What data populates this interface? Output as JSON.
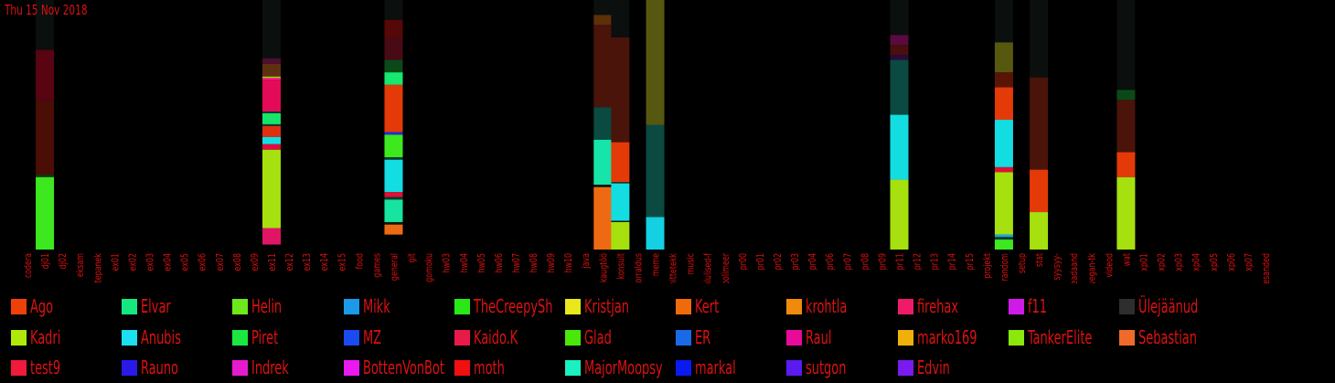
{
  "date_label": "Thu 15 Nov 2018",
  "colors": {
    "label_red": "#dd1111",
    "background": "#000000",
    "unused": "#0b0f0d"
  },
  "chart_data": {
    "type": "bar",
    "stacked": true,
    "ylim": [
      0,
      100
    ],
    "categories": [
      "codera",
      "dj01",
      "dj02",
      "eksam",
      "ettepanek",
      "ex01",
      "ex02",
      "ex03",
      "ex04",
      "ex05",
      "ex06",
      "ex07",
      "ex08",
      "ex09",
      "ex11",
      "ex12",
      "ex13",
      "ex14",
      "ex15",
      "food",
      "games",
      "general",
      "git",
      "gomoku",
      "hw03",
      "hw04",
      "hw05",
      "hw06",
      "hw07",
      "hw08",
      "hw09",
      "hw10",
      "java",
      "kaugtöö",
      "konsult",
      "korraldus",
      "meme",
      "mittetekk",
      "music",
      "olulised-f",
      "polimeer",
      "pr00",
      "pr01",
      "pr02",
      "pr03",
      "pr04",
      "pr06",
      "pr07",
      "pr08",
      "pr09",
      "pr11",
      "pr12",
      "pr13",
      "pr14",
      "pr15",
      "projekt",
      "random",
      "setup",
      "stat",
      "syysyy-",
      "teadaand",
      "vegan-tk",
      "videod",
      "wat",
      "xp01",
      "xp02",
      "xp03",
      "xp04",
      "xp05",
      "xp06",
      "xp07",
      "ülesanded"
    ],
    "bars": {
      "dj01": [
        {
          "color": "#0b0f0d",
          "value": 20
        },
        {
          "color": "#580412",
          "value": 20
        },
        {
          "color": "#4a0e07",
          "value": 30
        },
        {
          "color": "#0d3a10",
          "value": 1
        },
        {
          "color": "#3ee81f",
          "value": 29
        }
      ],
      "ex11": [
        {
          "color": "#0b0f0d",
          "value": 23.4
        },
        {
          "color": "#4e0e30",
          "value": 2.2
        },
        {
          "color": "#5e3010",
          "value": 5.1
        },
        {
          "color": "#a0e020",
          "value": 0.5
        },
        {
          "color": "#ff2a80",
          "value": 0.7
        },
        {
          "color": "#e30b58",
          "value": 12.8
        },
        {
          "color": "#0c3a2c",
          "value": 0.7
        },
        {
          "color": "#17e46a",
          "value": 4.4
        },
        {
          "color": "#0c3a2c",
          "value": 0.7
        },
        {
          "color": "#e03010",
          "value": 4.4
        },
        {
          "color": "#14dde2",
          "value": 2.9
        },
        {
          "color": "#e30b40",
          "value": 2.2
        },
        {
          "color": "#a6e00e",
          "value": 31.4
        },
        {
          "color": "#e01565",
          "value": 6.6
        }
      ],
      "general": [
        {
          "color": "#0b0f0d",
          "value": 8
        },
        {
          "color": "#560808",
          "value": 7
        },
        {
          "color": "#480a14",
          "value": 9
        },
        {
          "color": "#0a4a18",
          "value": 5
        },
        {
          "color": "#16e870",
          "value": 5
        },
        {
          "color": "#e43a08",
          "value": 19
        },
        {
          "color": "#1a2ee0",
          "value": 1
        },
        {
          "color": "#3ee81f",
          "value": 9
        },
        {
          "color": "#0c3a2c",
          "value": 1
        },
        {
          "color": "#14dde2",
          "value": 13
        },
        {
          "color": "#e01035",
          "value": 2
        },
        {
          "color": "#0c3a2c",
          "value": 1
        },
        {
          "color": "#17e4a0",
          "value": 9
        },
        {
          "color": "#0a1a10",
          "value": 1
        },
        {
          "color": "#ee6a12",
          "value": 4
        }
      ],
      "kaugtöö": [
        {
          "color": "#0b0f0d",
          "value": 6
        },
        {
          "color": "#5e3008",
          "value": 4
        },
        {
          "color": "#4a140a",
          "value": 33
        },
        {
          "color": "#0b4a40",
          "value": 13
        },
        {
          "color": "#17e4a8",
          "value": 18
        },
        {
          "color": "#0a1a10",
          "value": 1
        },
        {
          "color": "#ee6a12",
          "value": 25
        }
      ],
      "konsult": [
        {
          "color": "#0b0f0d",
          "value": 15
        },
        {
          "color": "#4a140a",
          "value": 42
        },
        {
          "color": "#e43a08",
          "value": 16
        },
        {
          "color": "#0c3a2c",
          "value": 0.5
        },
        {
          "color": "#14dde2",
          "value": 15
        },
        {
          "color": "#0a1a10",
          "value": 0.5
        },
        {
          "color": "#a6e00e",
          "value": 11
        }
      ],
      "meme": [
        {
          "color": "#565810",
          "value": 50
        },
        {
          "color": "#0b4a40",
          "value": 37
        },
        {
          "color": "#14d0e2",
          "value": 13
        }
      ],
      "pr11": [
        {
          "color": "#0b0f0d",
          "value": 14
        },
        {
          "color": "#5a0a40",
          "value": 4
        },
        {
          "color": "#4a0e0e",
          "value": 4
        },
        {
          "color": "#2a0a3a",
          "value": 2
        },
        {
          "color": "#0b4a40",
          "value": 22
        },
        {
          "color": "#14dde2",
          "value": 26
        },
        {
          "color": "#a6e00e",
          "value": 28
        }
      ],
      "random": [
        {
          "color": "#0b0f0d",
          "value": 17
        },
        {
          "color": "#565810",
          "value": 12
        },
        {
          "color": "#5a1405",
          "value": 6
        },
        {
          "color": "#e43a08",
          "value": 13
        },
        {
          "color": "#14dde2",
          "value": 19
        },
        {
          "color": "#e01035",
          "value": 2
        },
        {
          "color": "#a6e00e",
          "value": 25
        },
        {
          "color": "#14aae2",
          "value": 1
        },
        {
          "color": "#0c3a2c",
          "value": 1
        },
        {
          "color": "#3ee81f",
          "value": 4
        }
      ],
      "stat": [
        {
          "color": "#0b0f0d",
          "value": 31
        },
        {
          "color": "#4a140a",
          "value": 37
        },
        {
          "color": "#e43a08",
          "value": 17
        },
        {
          "color": "#a6e00e",
          "value": 15
        }
      ],
      "wat": [
        {
          "color": "#0b0f0d",
          "value": 36
        },
        {
          "color": "#0a4a18",
          "value": 4
        },
        {
          "color": "#4a140a",
          "value": 21
        },
        {
          "color": "#e43a08",
          "value": 10
        },
        {
          "color": "#a6e00e",
          "value": 29
        }
      ]
    }
  },
  "legend": [
    {
      "label": "Ago",
      "color": "#f0400a"
    },
    {
      "label": "Elvar",
      "color": "#16e880"
    },
    {
      "label": "Helin",
      "color": "#6ee81a"
    },
    {
      "label": "Mikk",
      "color": "#1a9ae8"
    },
    {
      "label": "TheCreepySh",
      "color": "#2ae818"
    },
    {
      "label": "Kristjan",
      "color": "#e8e81a"
    },
    {
      "label": "Kert",
      "color": "#f06a0a"
    },
    {
      "label": "krohtla",
      "color": "#f08a0a"
    },
    {
      "label": "firehax",
      "color": "#f01a6a"
    },
    {
      "label": "f11",
      "color": "#d01ae8"
    },
    {
      "label": "Ülejäänud",
      "color": "#2e2e2e"
    },
    {
      "label": "Kadri",
      "color": "#b0e80a"
    },
    {
      "label": "Anubis",
      "color": "#1ae0f0"
    },
    {
      "label": "Piret",
      "color": "#1ae840"
    },
    {
      "label": "MZ",
      "color": "#1a4af0"
    },
    {
      "label": "Kaido.K",
      "color": "#e81a4a"
    },
    {
      "label": "Glad",
      "color": "#4ae80a"
    },
    {
      "label": "ER",
      "color": "#1a6ae8"
    },
    {
      "label": "Raul",
      "color": "#e80a9a"
    },
    {
      "label": "marko169",
      "color": "#f0b00a"
    },
    {
      "label": "TankerElite",
      "color": "#8ae80a"
    },
    {
      "label": "Sebastian",
      "color": "#f06a2a"
    },
    {
      "label": "test9",
      "color": "#f01a3a"
    },
    {
      "label": "Rauno",
      "color": "#2a1ae8"
    },
    {
      "label": "Indrek",
      "color": "#e81ad0"
    },
    {
      "label": "BottenVonBot",
      "color": "#e81af0"
    },
    {
      "label": "moth",
      "color": "#f01010"
    },
    {
      "label": "MajorMoopsy",
      "color": "#1af0c0"
    },
    {
      "label": "markal",
      "color": "#0a1af0"
    },
    {
      "label": "sutgon",
      "color": "#5a1af0"
    },
    {
      "label": "Edvin",
      "color": "#7a1af0"
    }
  ]
}
